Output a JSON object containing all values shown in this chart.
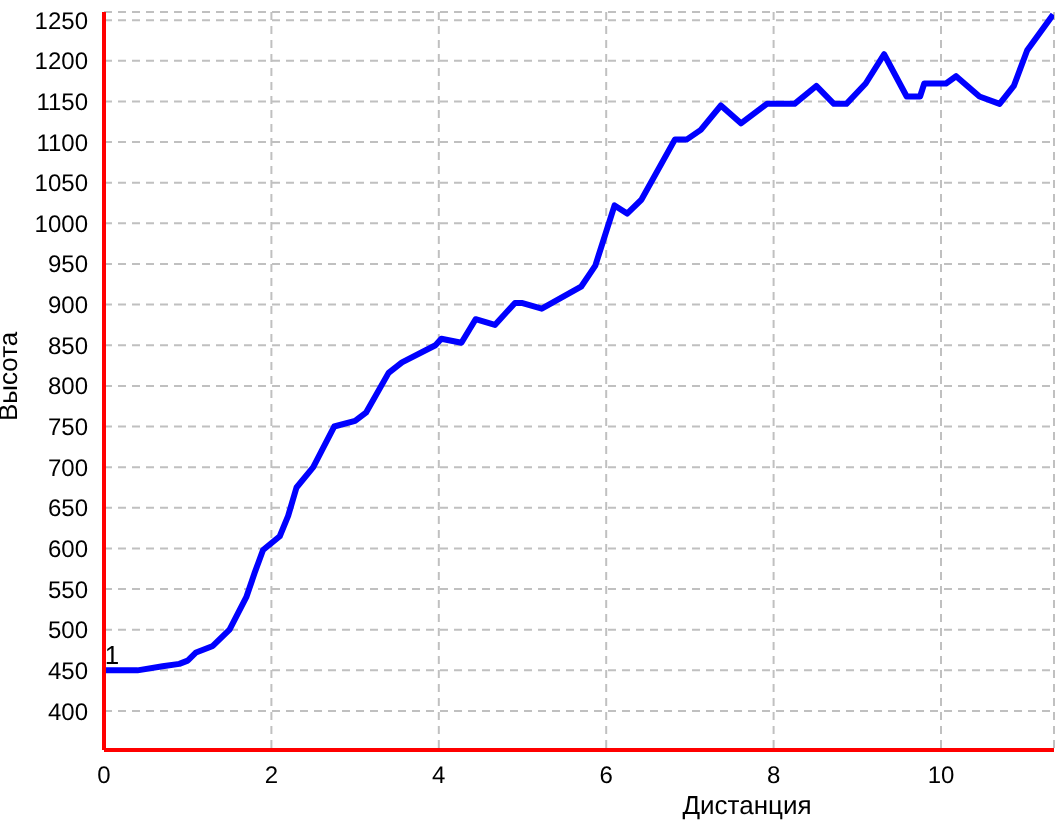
{
  "chart_data": {
    "type": "line",
    "xlabel": "Дистанция",
    "ylabel": "Высота",
    "x": [
      0,
      0.4,
      0.7,
      0.9,
      1.0,
      1.1,
      1.3,
      1.5,
      1.6,
      1.7,
      1.8,
      1.9,
      2.1,
      2.2,
      2.3,
      2.5,
      2.6,
      2.75,
      3.0,
      3.13,
      3.4,
      3.56,
      3.96,
      4.03,
      4.27,
      4.44,
      4.67,
      4.91,
      4.99,
      5.23,
      5.7,
      5.87,
      6.1,
      6.25,
      6.42,
      6.82,
      6.96,
      7.13,
      7.37,
      7.61,
      7.92,
      8.25,
      8.51,
      8.72,
      8.87,
      9.1,
      9.32,
      9.59,
      9.75,
      9.8,
      10.06,
      10.18,
      10.46,
      10.7,
      10.87,
      11.03,
      11.34
    ],
    "series": [
      {
        "color": "#0000ff",
        "values": [
          450,
          450,
          455,
          458,
          462,
          472,
          480,
          500,
          520,
          540,
          570,
          598,
          615,
          640,
          675,
          700,
          720,
          750,
          757,
          767,
          816,
          829,
          850,
          858,
          853,
          882,
          875,
          902,
          902,
          895,
          922,
          948,
          1022,
          1012,
          1029,
          1103,
          1103,
          1115,
          1145,
          1123,
          1147,
          1147,
          1169,
          1147,
          1147,
          1172,
          1208,
          1156,
          1156,
          1172,
          1172,
          1181,
          1156,
          1147,
          1169,
          1213,
          1257
        ]
      }
    ],
    "xlim": [
      0,
      11.35
    ],
    "xticks": [
      0,
      2,
      4,
      6,
      8,
      10
    ],
    "ylim": [
      352,
      1260
    ],
    "yticks": [
      400,
      450,
      500,
      550,
      600,
      650,
      700,
      750,
      800,
      850,
      900,
      950,
      1000,
      1050,
      1100,
      1150,
      1200,
      1250
    ],
    "grid": true,
    "legend": false,
    "marker": "none",
    "line_style": "solid",
    "annotations": [
      {
        "text": "1",
        "x": 0,
        "y": 450
      }
    ]
  }
}
